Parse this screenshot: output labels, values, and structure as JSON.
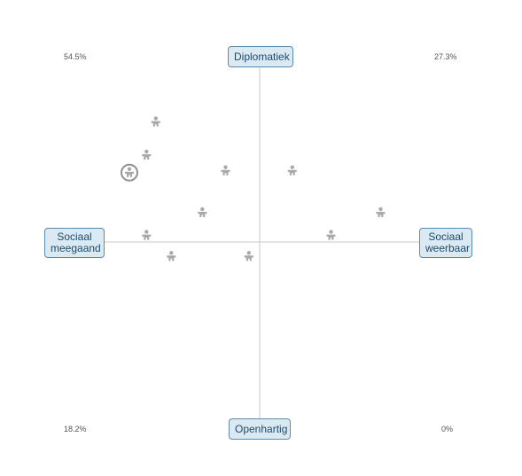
{
  "chart_data": {
    "type": "scatter",
    "title": "",
    "axes": {
      "top": "Diplomatiek",
      "bottom": "Openhartig",
      "left": "Sociaal\nmeegaand",
      "right": "Sociaal\nweerbaar"
    },
    "xlim": [
      -1,
      1
    ],
    "ylim": [
      -1,
      1
    ],
    "quadrant_percentages": {
      "top_left": "54.5%",
      "top_right": "27.3%",
      "bottom_left": "18.2%",
      "bottom_right": "0%"
    },
    "points": [
      {
        "x": -0.67,
        "y": 0.69,
        "highlighted": false
      },
      {
        "x": -0.73,
        "y": 0.5,
        "highlighted": false
      },
      {
        "x": -0.84,
        "y": 0.4,
        "highlighted": true
      },
      {
        "x": -0.22,
        "y": 0.41,
        "highlighted": false
      },
      {
        "x": 0.21,
        "y": 0.41,
        "highlighted": false
      },
      {
        "x": -0.37,
        "y": 0.17,
        "highlighted": false
      },
      {
        "x": 0.78,
        "y": 0.17,
        "highlighted": false
      },
      {
        "x": -0.73,
        "y": 0.04,
        "highlighted": false
      },
      {
        "x": 0.46,
        "y": 0.04,
        "highlighted": false
      },
      {
        "x": -0.57,
        "y": -0.08,
        "highlighted": false
      },
      {
        "x": -0.07,
        "y": -0.08,
        "highlighted": false
      }
    ],
    "colors": {
      "axis": "#c8c8c8",
      "point": "#a9a9a9",
      "highlight_ring": "#8f8f8f"
    },
    "grid": false,
    "legend": "none"
  }
}
